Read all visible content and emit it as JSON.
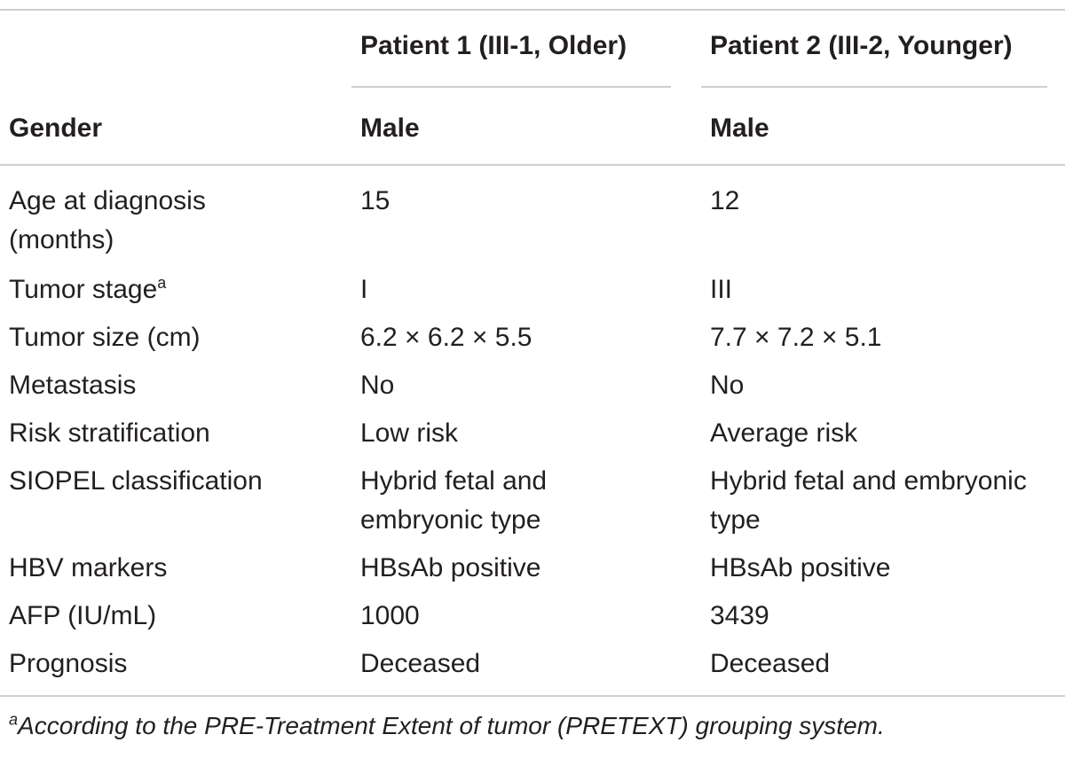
{
  "table": {
    "columns": [
      "Patient 1 (III-1, Older)",
      "Patient 2 (III-2, Younger)"
    ],
    "header_row": {
      "label": "Gender",
      "values": [
        "Male",
        "Male"
      ]
    },
    "rows": [
      {
        "label": [
          "Age at diagnosis",
          "(months)"
        ],
        "values": [
          [
            "15"
          ],
          [
            "12"
          ]
        ]
      },
      {
        "label": [
          "Tumor stage"
        ],
        "label_sup": "a",
        "values": [
          [
            "I"
          ],
          [
            "III"
          ]
        ]
      },
      {
        "label": [
          "Tumor size (cm)"
        ],
        "values": [
          [
            "6.2 × 6.2 × 5.5"
          ],
          [
            "7.7 × 7.2 × 5.1"
          ]
        ]
      },
      {
        "label": [
          "Metastasis"
        ],
        "values": [
          [
            "No"
          ],
          [
            "No"
          ]
        ]
      },
      {
        "label": [
          "Risk stratification"
        ],
        "values": [
          [
            "Low risk"
          ],
          [
            "Average risk"
          ]
        ]
      },
      {
        "label": [
          "SIOPEL classification"
        ],
        "values": [
          [
            "Hybrid fetal and",
            "embryonic type"
          ],
          [
            "Hybrid fetal and embryonic",
            "type"
          ]
        ]
      },
      {
        "label": [
          "HBV markers"
        ],
        "values": [
          [
            "HBsAb positive"
          ],
          [
            "HBsAb positive"
          ]
        ]
      },
      {
        "label": [
          "AFP (IU/mL)"
        ],
        "values": [
          [
            "1000"
          ],
          [
            "3439"
          ]
        ]
      },
      {
        "label": [
          "Prognosis"
        ],
        "values": [
          [
            "Deceased"
          ],
          [
            "Deceased"
          ]
        ]
      }
    ],
    "footnote_mark": "a",
    "footnote": "According to the PRE-Treatment Extent of tumor (PRETEXT) grouping system."
  }
}
